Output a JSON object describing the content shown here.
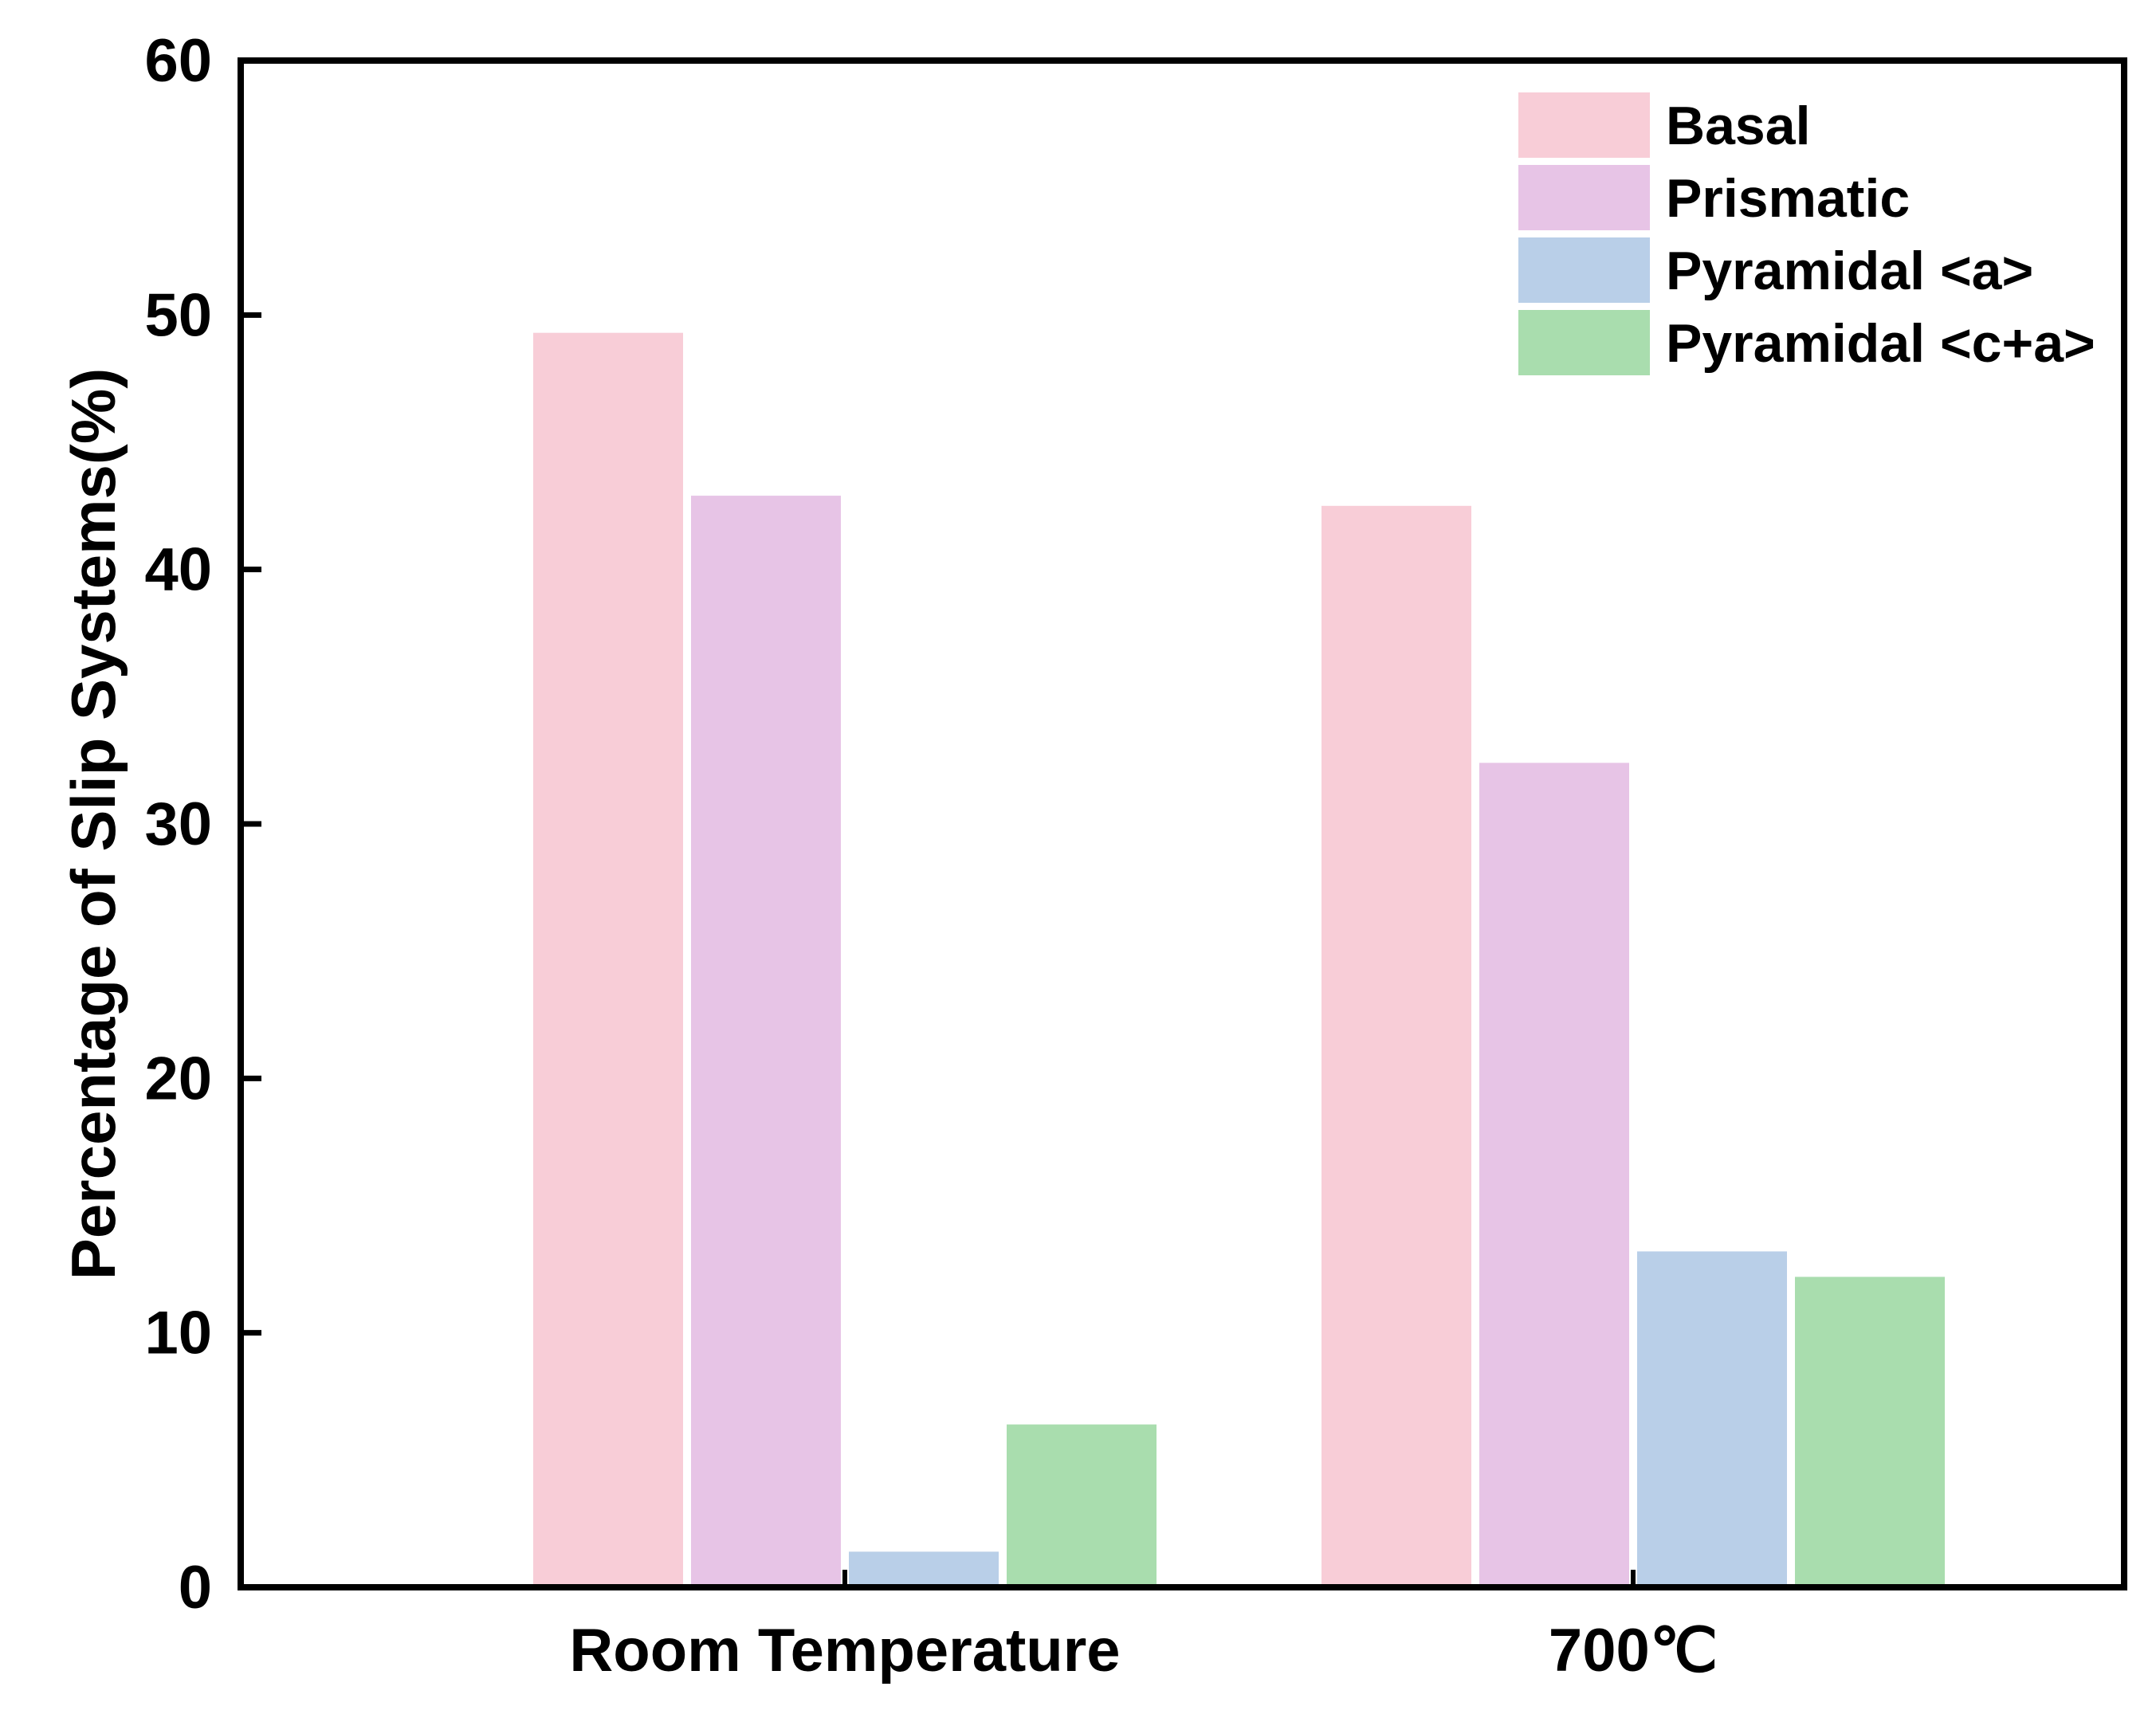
{
  "chart_data": {
    "type": "bar",
    "title": "",
    "xlabel": "",
    "ylabel": "Percentage of Slip Systems(%)",
    "categories": [
      "Room Temperature",
      "700℃"
    ],
    "series": [
      {
        "name": "Basal",
        "color": "#F8CDD7",
        "values": [
          49.3,
          42.5
        ]
      },
      {
        "name": "Prismatic",
        "color": "#E7C4E6",
        "values": [
          42.9,
          32.4
        ]
      },
      {
        "name": "Pyramidal <a>",
        "color": "#B9CFE8",
        "values": [
          1.4,
          13.2
        ]
      },
      {
        "name": "Pyramidal <c+a>",
        "color": "#A9DDAE",
        "values": [
          6.4,
          12.2
        ]
      }
    ],
    "ylim": [
      0,
      60
    ],
    "yticks": [
      "0",
      "10",
      "20",
      "30",
      "40",
      "50",
      "60"
    ],
    "grid": false,
    "legend_position": "top-right"
  }
}
